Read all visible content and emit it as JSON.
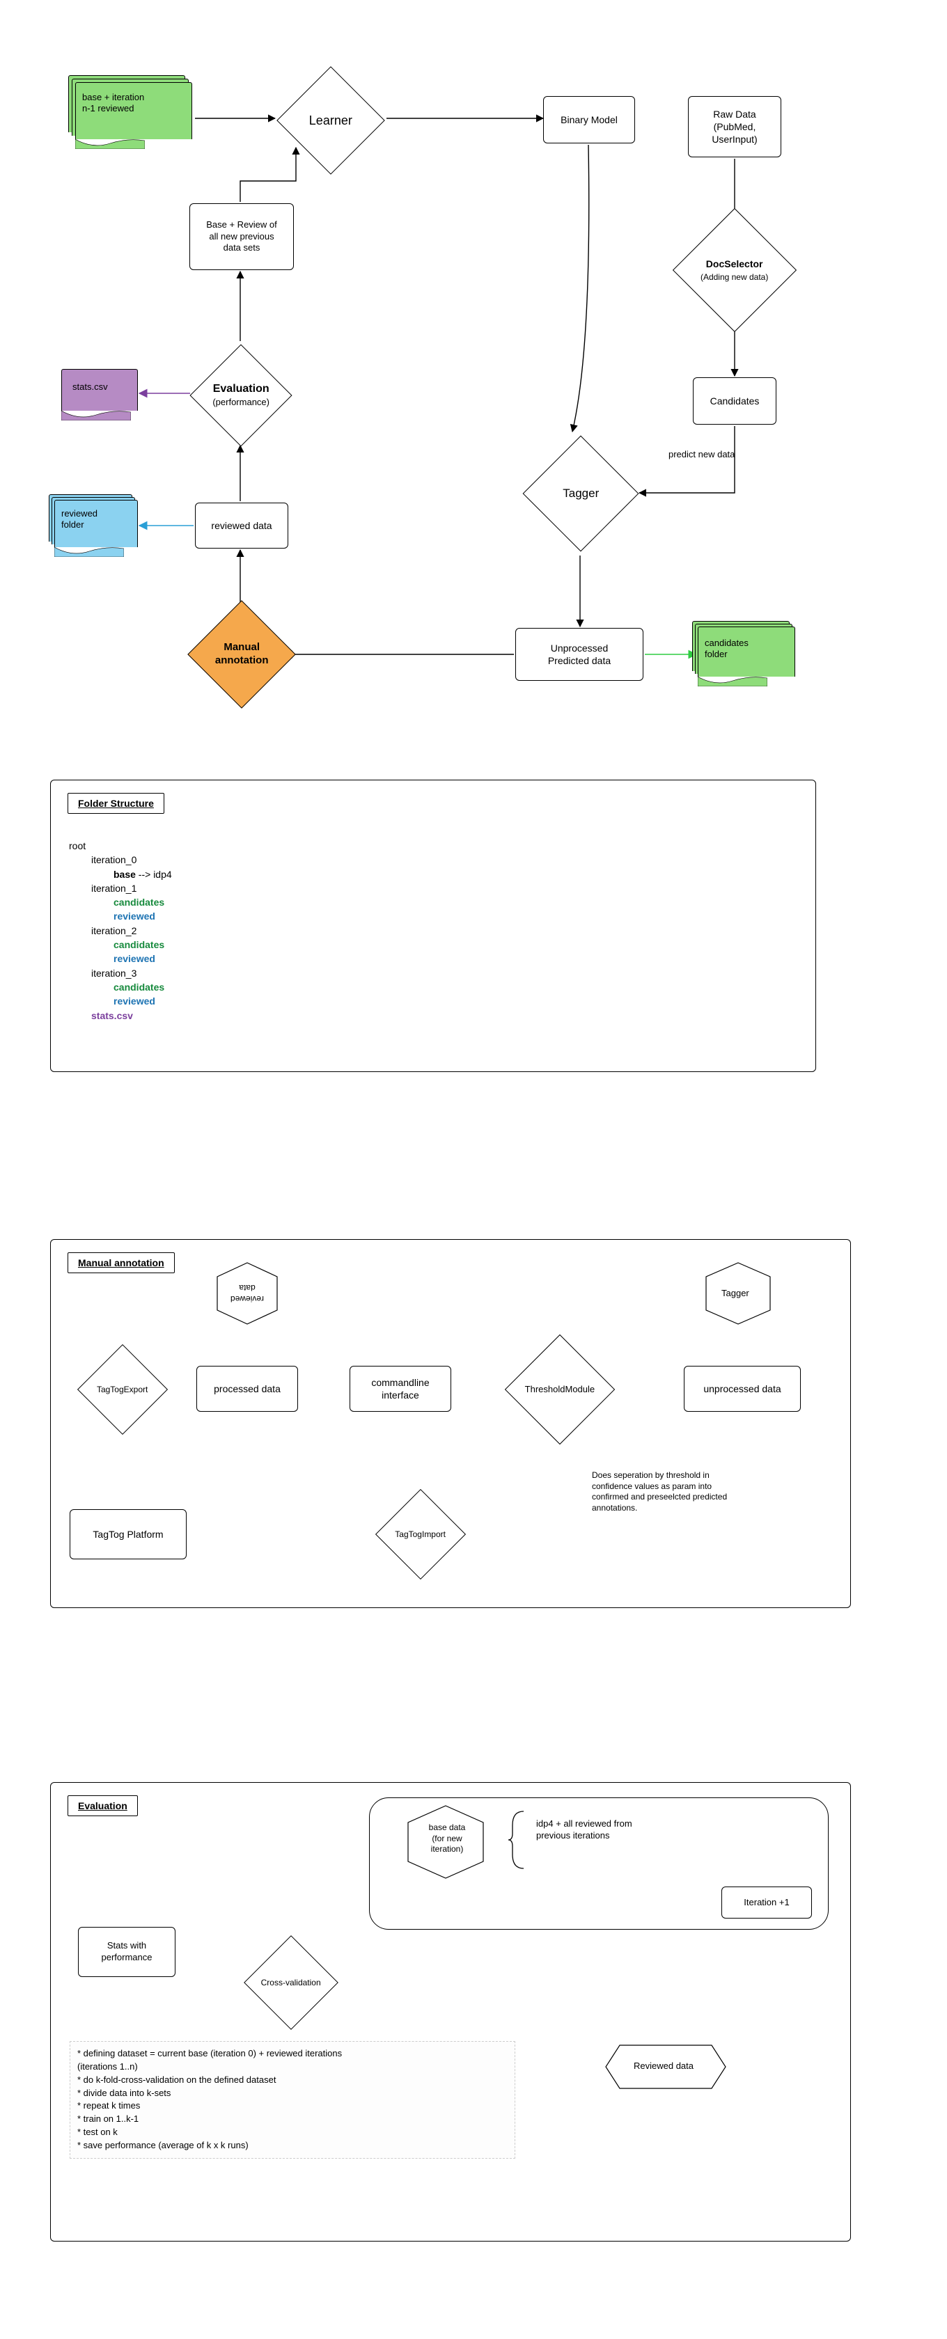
{
  "colors": {
    "green": "#8edc7a",
    "blue": "#8bd2f0",
    "purple": "#b68bc4",
    "orange": "#f5a84c",
    "border": "#000000",
    "arrow_green": "#2ecc40",
    "arrow_blue": "#2a9fd6",
    "arrow_purple": "#7b3f9d",
    "text_green": "#178a3d",
    "text_blue": "#1e74b3",
    "text_purple": "#7b3f9d"
  },
  "flow": {
    "doc_base": "base + iteration\nn-1 reviewed",
    "learner": "Learner",
    "binary_model": "Binary Model",
    "raw_data": "Raw Data\n(PubMed,\nUserInput)",
    "doc_selector_1": "DocSelector",
    "doc_selector_2": "(Adding new data)",
    "candidates_box": "Candidates",
    "predict_label": "predict new data",
    "tagger": "Tagger",
    "unprocessed": "Unprocessed\nPredicted data",
    "candidates_folder": "candidates\nfolder",
    "manual_annotation": "Manual\nannotation",
    "reviewed_data": "reviewed data",
    "reviewed_folder": "reviewed\nfolder",
    "stats_csv": "stats.csv",
    "evaluation_1": "Evaluation",
    "evaluation_2": "(performance)",
    "base_review": "Base + Review of\nall new previous\ndata sets"
  },
  "folder_panel": {
    "title": "Folder Structure",
    "tree": [
      {
        "t": "root",
        "cls": "",
        "ind": 0
      },
      {
        "t": "iteration_0",
        "cls": "",
        "ind": 1
      },
      {
        "t": "base",
        "cls": "bold",
        "ind": 2,
        "suffix": " --> idp4"
      },
      {
        "t": "iteration_1",
        "cls": "",
        "ind": 1
      },
      {
        "t": "candidates",
        "cls": "green bold",
        "ind": 2
      },
      {
        "t": "reviewed",
        "cls": "blue bold",
        "ind": 2
      },
      {
        "t": "iteration_2",
        "cls": "",
        "ind": 1
      },
      {
        "t": "candidates",
        "cls": "green bold",
        "ind": 2
      },
      {
        "t": "reviewed",
        "cls": "blue bold",
        "ind": 2
      },
      {
        "t": "iteration_3",
        "cls": "",
        "ind": 1
      },
      {
        "t": "candidates",
        "cls": "green bold",
        "ind": 2
      },
      {
        "t": "reviewed",
        "cls": "blue bold",
        "ind": 2
      },
      {
        "t": "stats.csv",
        "cls": "purple bold",
        "ind": 1
      }
    ]
  },
  "manual_panel": {
    "title": "Manual annotation",
    "reviewed_data": "reviewed\ndata",
    "tagger": "Tagger",
    "unprocessed": "unprocessed data",
    "threshold": "ThresholdModule",
    "cmdline": "commandline\ninterface",
    "processed": "processed data",
    "tagtog_export": "TagTogExport",
    "tagtog_platform": "TagTog Platform",
    "tagtog_import": "TagTogImport",
    "note": "Does seperation by threshold in\nconfidence values as param into\nconfirmed and preseelcted predicted\nannotations."
  },
  "eval_panel": {
    "title": "Evaluation",
    "base_data": "base data\n(for new\niteration)",
    "bracket_text": "idp4 + all reviewed from\nprevious iterations",
    "iteration_plus": "Iteration +1",
    "stats_perf": "Stats with\nperformance",
    "cross_val": "Cross-validation",
    "reviewed": "Reviewed data",
    "note": "* defining dataset = current base (iteration 0) + reviewed iterations\n(iterations 1..n)\n        * do k-fold-cross-validation on the defined dataset\n                * divide data into k-sets\n                * repeat k times\n                        * train on 1..k-1\n                        * test on k\n                * save performance (average of k x k runs)"
  }
}
